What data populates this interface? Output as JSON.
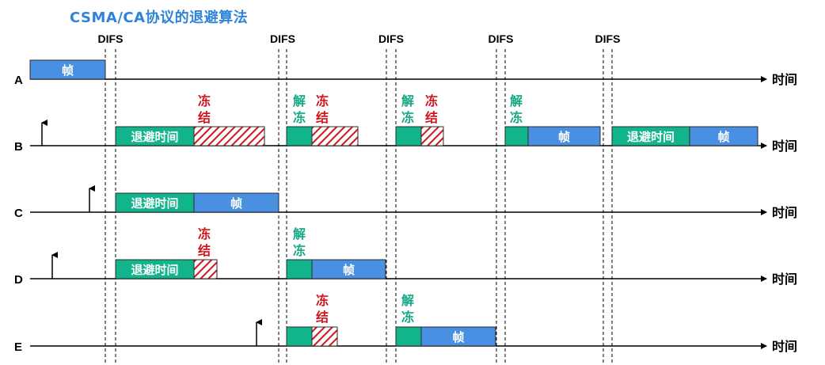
{
  "title": "CSMA/CA协议的退避算法",
  "difs_label": "DIFS",
  "time_label": "时间",
  "box_labels": {
    "frame": "帧",
    "backoff": "退避时间"
  },
  "freeze_chars": [
    "冻",
    "结"
  ],
  "thaw_chars": [
    "解",
    "冻"
  ],
  "stations": [
    "A",
    "B",
    "C",
    "D",
    "E"
  ],
  "colors": {
    "title": "#2f83d8",
    "frame": "#4a90e2",
    "backoff": "#12b48c",
    "freeze_hatch": "#d2141c",
    "freeze_text": "#d2141c",
    "thaw_text": "#17a886"
  }
}
